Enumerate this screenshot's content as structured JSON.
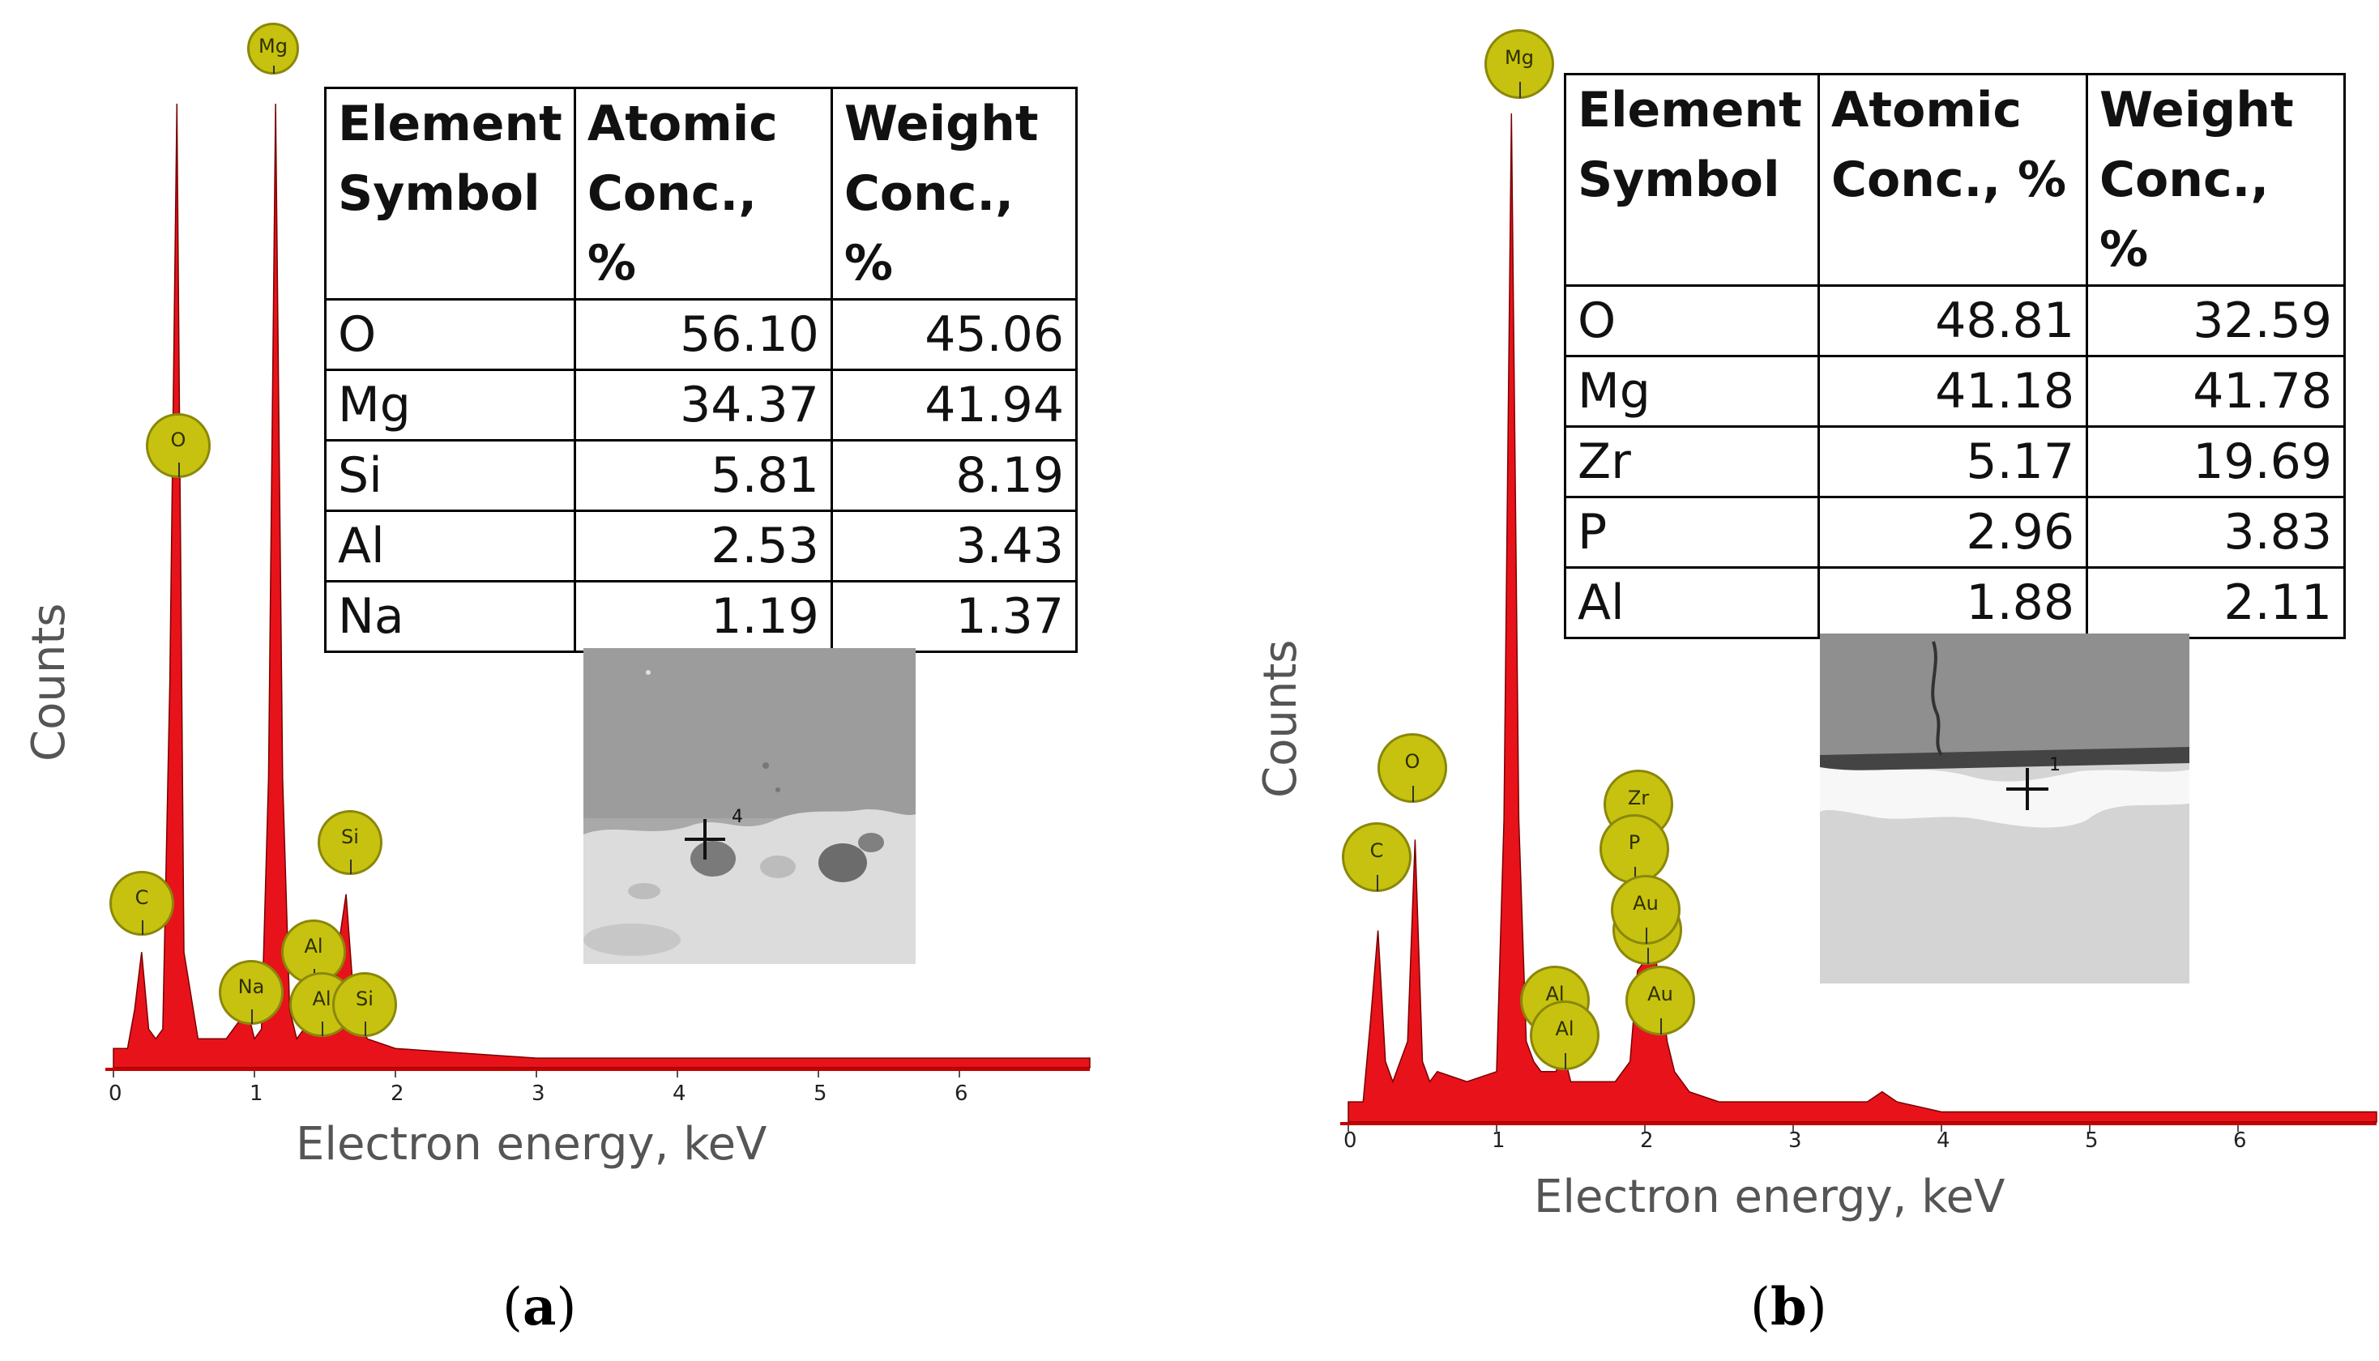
{
  "chart_data": [
    {
      "type": "line",
      "panel_label": "a",
      "xlabel": "Electron energy, keV",
      "ylabel": "Counts",
      "xticks": [
        "0",
        "1",
        "2",
        "3",
        "4",
        "5",
        "6"
      ],
      "xlim": [
        0,
        7
      ],
      "x": [
        0.0,
        0.1,
        0.15,
        0.2,
        0.25,
        0.3,
        0.35,
        0.4,
        0.45,
        0.5,
        0.6,
        0.8,
        0.95,
        1.0,
        1.05,
        1.1,
        1.15,
        1.2,
        1.25,
        1.3,
        1.4,
        1.45,
        1.5,
        1.55,
        1.6,
        1.65,
        1.7,
        1.75,
        1.8,
        2.0,
        3.0,
        4.0,
        5.0,
        6.0,
        7.0
      ],
      "y": [
        2,
        2,
        6,
        12,
        4,
        3,
        4,
        40,
        100,
        12,
        3,
        3,
        6,
        3,
        4,
        30,
        100,
        30,
        6,
        3,
        5,
        7,
        4,
        5,
        13,
        18,
        8,
        5,
        3,
        2,
        1,
        1,
        1,
        1,
        1
      ],
      "peak_markers": [
        "Mg",
        "O",
        "C",
        "Na",
        "Al",
        "Al",
        "Si",
        "Si"
      ],
      "table": {
        "headers": [
          [
            "Element",
            "Symbol"
          ],
          [
            "Atomic",
            "Conc., %"
          ],
          [
            "Weight",
            "Conc., %"
          ]
        ],
        "rows": [
          [
            "O",
            "56.10",
            "45.06"
          ],
          [
            "Mg",
            "34.37",
            "41.94"
          ],
          [
            "Si",
            "5.81",
            "8.19"
          ],
          [
            "Al",
            "2.53",
            "3.43"
          ],
          [
            "Na",
            "1.19",
            "1.37"
          ]
        ]
      },
      "inset_marker": "4",
      "fill_color": "#e8131a"
    },
    {
      "type": "line",
      "panel_label": "b",
      "xlabel": "Electron energy, keV",
      "ylabel": "Counts",
      "xticks": [
        "0",
        "1",
        "2",
        "3",
        "4",
        "5",
        "6"
      ],
      "xlim": [
        0,
        7
      ],
      "x": [
        0.0,
        0.1,
        0.15,
        0.2,
        0.25,
        0.3,
        0.4,
        0.45,
        0.5,
        0.55,
        0.6,
        0.8,
        1.0,
        1.05,
        1.1,
        1.15,
        1.2,
        1.25,
        1.3,
        1.4,
        1.45,
        1.5,
        1.6,
        1.8,
        1.9,
        1.95,
        2.0,
        2.05,
        2.1,
        2.15,
        2.2,
        2.3,
        2.5,
        3.0,
        3.5,
        3.6,
        3.7,
        4.0,
        5.0,
        6.0,
        7.0
      ],
      "y": [
        2,
        2,
        10,
        19,
        6,
        4,
        8,
        28,
        6,
        4,
        5,
        4,
        5,
        30,
        100,
        30,
        8,
        6,
        5,
        5,
        7,
        4,
        4,
        4,
        6,
        15,
        16,
        18,
        14,
        8,
        5,
        3,
        2,
        2,
        2,
        3,
        2,
        1,
        1,
        1,
        1
      ],
      "peak_markers": [
        "Mg",
        "O",
        "C",
        "Zr",
        "P",
        "Au",
        "Au",
        "Au",
        "Al",
        "Al"
      ],
      "table": {
        "headers": [
          [
            "Element",
            "Symbol"
          ],
          [
            "Atomic",
            "Conc., %"
          ],
          [
            "Weight",
            "Conc., %"
          ]
        ],
        "rows": [
          [
            "O",
            "48.81",
            "32.59"
          ],
          [
            "Mg",
            "41.18",
            "41.78"
          ],
          [
            "Zr",
            "5.17",
            "19.69"
          ],
          [
            "P",
            "2.96",
            "3.83"
          ],
          [
            "Al",
            "1.88",
            "2.11"
          ]
        ]
      },
      "inset_marker": "1",
      "fill_color": "#e8131a"
    }
  ]
}
